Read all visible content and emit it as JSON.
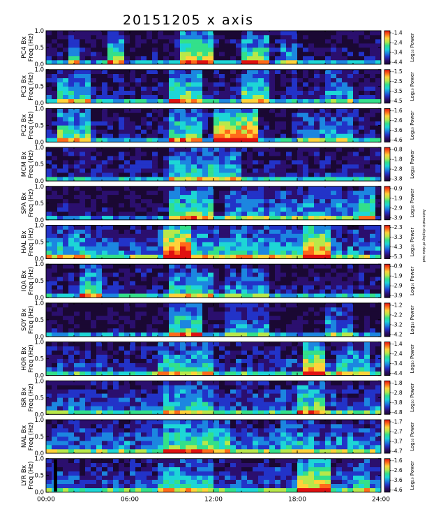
{
  "title": "20151205 x axis",
  "xticks": [
    "00:00",
    "06:00",
    "12:00",
    "18:00",
    "24:00"
  ],
  "yticks": [
    "0.0",
    "0.5",
    "1.0"
  ],
  "colorbar_label": "Log₁₀ Power",
  "side_note": "Automatic display of data bad",
  "colors": {
    "background": "#2a0a4a",
    "colormap": [
      "#1a0833",
      "#2b0f6e",
      "#2233c8",
      "#1c86e0",
      "#1dd6d6",
      "#33e08a",
      "#b8e84a",
      "#ffd23a",
      "#ff6a1a",
      "#e01010"
    ]
  },
  "chart_data": {
    "type": "heatmap",
    "x_range_hours": [
      0,
      24
    ],
    "y_range_hz": [
      0.0,
      1.0
    ],
    "panels": [
      {
        "station": "PC4",
        "ylabel": "PC4 Bx",
        "freq_label": "Freq (Hz)",
        "cbar_ticks": [
          "-1.4",
          "-2.4",
          "-3.4",
          "-4.4"
        ]
      },
      {
        "station": "PC3",
        "ylabel": "PC3 Bx",
        "freq_label": "Freq (Hz)",
        "cbar_ticks": [
          "-1.5",
          "-2.5",
          "-3.5",
          "-4.5"
        ]
      },
      {
        "station": "PC2",
        "ylabel": "PC2 Bx",
        "freq_label": "Freq (Hz)",
        "cbar_ticks": [
          "-1.6",
          "-2.6",
          "-3.6",
          "-4.6"
        ]
      },
      {
        "station": "MCM",
        "ylabel": "MCM Bx",
        "freq_label": "Freq (Hz)",
        "cbar_ticks": [
          "-0.8",
          "-1.8",
          "-2.8",
          "-3.8"
        ]
      },
      {
        "station": "SPA",
        "ylabel": "SPA Bx",
        "freq_label": "Freq (Hz)",
        "cbar_ticks": [
          "-0.9",
          "-1.9",
          "-2.9",
          "-3.9"
        ]
      },
      {
        "station": "HAL",
        "ylabel": "HAL Bx",
        "freq_label": "Freq (Hz)",
        "cbar_ticks": [
          "-2.3",
          "-3.3",
          "-4.3",
          "-5.3"
        ]
      },
      {
        "station": "IQA",
        "ylabel": "IQA Bx",
        "freq_label": "Freq (Hz)",
        "cbar_ticks": [
          "-0.9",
          "-1.9",
          "-2.9",
          "-3.9"
        ]
      },
      {
        "station": "SOY",
        "ylabel": "SOY Bx",
        "freq_label": "Freq (Hz)",
        "cbar_ticks": [
          "-1.2",
          "-2.2",
          "-3.2",
          "-4.2"
        ]
      },
      {
        "station": "HOR",
        "ylabel": "HOR Bx",
        "freq_label": "Freq (Hz)",
        "cbar_ticks": [
          "-1.4",
          "-2.4",
          "-3.4",
          "-4.4"
        ]
      },
      {
        "station": "ISR",
        "ylabel": "ISR Bx",
        "freq_label": "Freq (Hz)",
        "cbar_ticks": [
          "-1.8",
          "-2.8",
          "-3.8",
          "-4.8"
        ]
      },
      {
        "station": "NAL",
        "ylabel": "NAL Bx",
        "freq_label": "Freq (Hz)",
        "cbar_ticks": [
          "-1.7",
          "-2.7",
          "-3.7",
          "-4.7"
        ]
      },
      {
        "station": "LYR",
        "ylabel": "LYR Bx",
        "freq_label": "Freq (Hz)",
        "cbar_ticks": [
          "-1.6",
          "-2.6",
          "-3.6",
          "-4.6"
        ]
      }
    ]
  }
}
